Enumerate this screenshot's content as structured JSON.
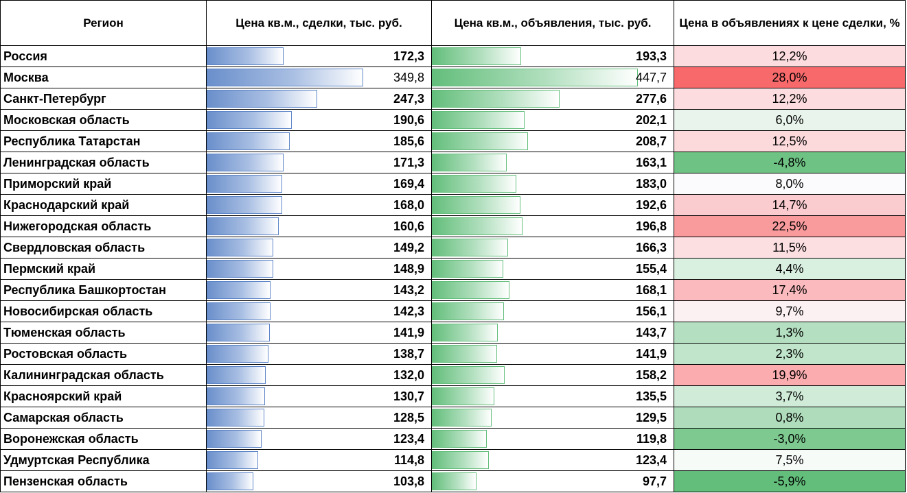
{
  "headers": {
    "region": "Регион",
    "deal_price": "Цена кв.м., сделки, тыс. руб.",
    "listing_price": "Цена кв.м., объявления, тыс. руб.",
    "ratio": "Цена в объявлениях к цене сделки, %"
  },
  "rows": [
    {
      "region": "Россия",
      "deal": "172,3",
      "listing": "193,3",
      "ratio": "12,2%",
      "deal_num": 172.3,
      "listing_num": 193.3,
      "ratio_color": "#fcdcde"
    },
    {
      "region": "Москва",
      "deal": "349,8",
      "listing": "447,7",
      "ratio": "28,0%",
      "deal_num": 349.8,
      "listing_num": 447.7,
      "ratio_color": "#f8696b"
    },
    {
      "region": "Санкт-Петербург",
      "deal": "247,3",
      "listing": "277,6",
      "ratio": "12,2%",
      "deal_num": 247.3,
      "listing_num": 277.6,
      "ratio_color": "#fcdcde"
    },
    {
      "region": "Московская область",
      "deal": "190,6",
      "listing": "202,1",
      "ratio": "6,0%",
      "deal_num": 190.6,
      "listing_num": 202.1,
      "ratio_color": "#e9f5ec"
    },
    {
      "region": "Республика Татарстан",
      "deal": "185,6",
      "listing": "208,7",
      "ratio": "12,5%",
      "deal_num": 185.6,
      "listing_num": 208.7,
      "ratio_color": "#fcd9db"
    },
    {
      "region": "Ленинградская область",
      "deal": "171,3",
      "listing": "163,1",
      "ratio": "-4,8%",
      "deal_num": 171.3,
      "listing_num": 163.1,
      "ratio_color": "#6ec384"
    },
    {
      "region": "Приморский край",
      "deal": "169,4",
      "listing": "183,0",
      "ratio": "8,0%",
      "deal_num": 169.4,
      "listing_num": 183.0,
      "ratio_color": "#fbfbfd"
    },
    {
      "region": "Краснодарский край",
      "deal": "168,0",
      "listing": "192,6",
      "ratio": "14,7%",
      "deal_num": 168.0,
      "listing_num": 192.6,
      "ratio_color": "#fbcccf"
    },
    {
      "region": "Нижегородская область",
      "deal": "160,6",
      "listing": "196,8",
      "ratio": "22,5%",
      "deal_num": 160.6,
      "listing_num": 196.8,
      "ratio_color": "#f99b9d"
    },
    {
      "region": "Свердловская область",
      "deal": "149,2",
      "listing": "166,3",
      "ratio": "11,5%",
      "deal_num": 149.2,
      "listing_num": 166.3,
      "ratio_color": "#fcdfe1"
    },
    {
      "region": "Пермский край",
      "deal": "148,9",
      "listing": "155,4",
      "ratio": "4,4%",
      "deal_num": 148.9,
      "listing_num": 155.4,
      "ratio_color": "#d9efdf"
    },
    {
      "region": "Республика Башкортостан",
      "deal": "143,2",
      "listing": "168,1",
      "ratio": "17,4%",
      "deal_num": 143.2,
      "listing_num": 168.1,
      "ratio_color": "#fbbbbe"
    },
    {
      "region": "Новосибирская область",
      "deal": "142,3",
      "listing": "156,1",
      "ratio": "9,7%",
      "deal_num": 142.3,
      "listing_num": 156.1,
      "ratio_color": "#fcf1f2"
    },
    {
      "region": "Тюменская область",
      "deal": "141,9",
      "listing": "143,7",
      "ratio": "1,3%",
      "deal_num": 141.9,
      "listing_num": 143.7,
      "ratio_color": "#b4dfc0"
    },
    {
      "region": "Ростовская область",
      "deal": "138,7",
      "listing": "141,9",
      "ratio": "2,3%",
      "deal_num": 138.7,
      "listing_num": 141.9,
      "ratio_color": "#c0e5ca"
    },
    {
      "region": "Калининградская область",
      "deal": "132,0",
      "listing": "158,2",
      "ratio": "19,9%",
      "deal_num": 132.0,
      "listing_num": 158.2,
      "ratio_color": "#faacae"
    },
    {
      "region": "Красноярский край",
      "deal": "130,7",
      "listing": "135,5",
      "ratio": "3,7%",
      "deal_num": 130.7,
      "listing_num": 135.5,
      "ratio_color": "#d0ecd8"
    },
    {
      "region": "Самарская область",
      "deal": "128,5",
      "listing": "129,5",
      "ratio": "0,8%",
      "deal_num": 128.5,
      "listing_num": 129.5,
      "ratio_color": "#afdcbb"
    },
    {
      "region": "Воронежская область",
      "deal": "123,4",
      "listing": "119,8",
      "ratio": "-3,0%",
      "deal_num": 123.4,
      "listing_num": 119.8,
      "ratio_color": "#7dc990"
    },
    {
      "region": "Удмуртская Республика",
      "deal": "114,8",
      "listing": "123,4",
      "ratio": "7,5%",
      "deal_num": 114.8,
      "listing_num": 123.4,
      "ratio_color": "#f6fbf8"
    },
    {
      "region": "Пензенская область",
      "deal": "103,8",
      "listing": "97,7",
      "ratio": "-5,9%",
      "deal_num": 103.8,
      "listing_num": 97.7,
      "ratio_color": "#63be7b"
    }
  ],
  "colors": {
    "deal_bar": "#5b83c6",
    "listing_bar": "#63be7b",
    "ratio_high": "#f8696b",
    "ratio_low": "#63be7b"
  }
}
